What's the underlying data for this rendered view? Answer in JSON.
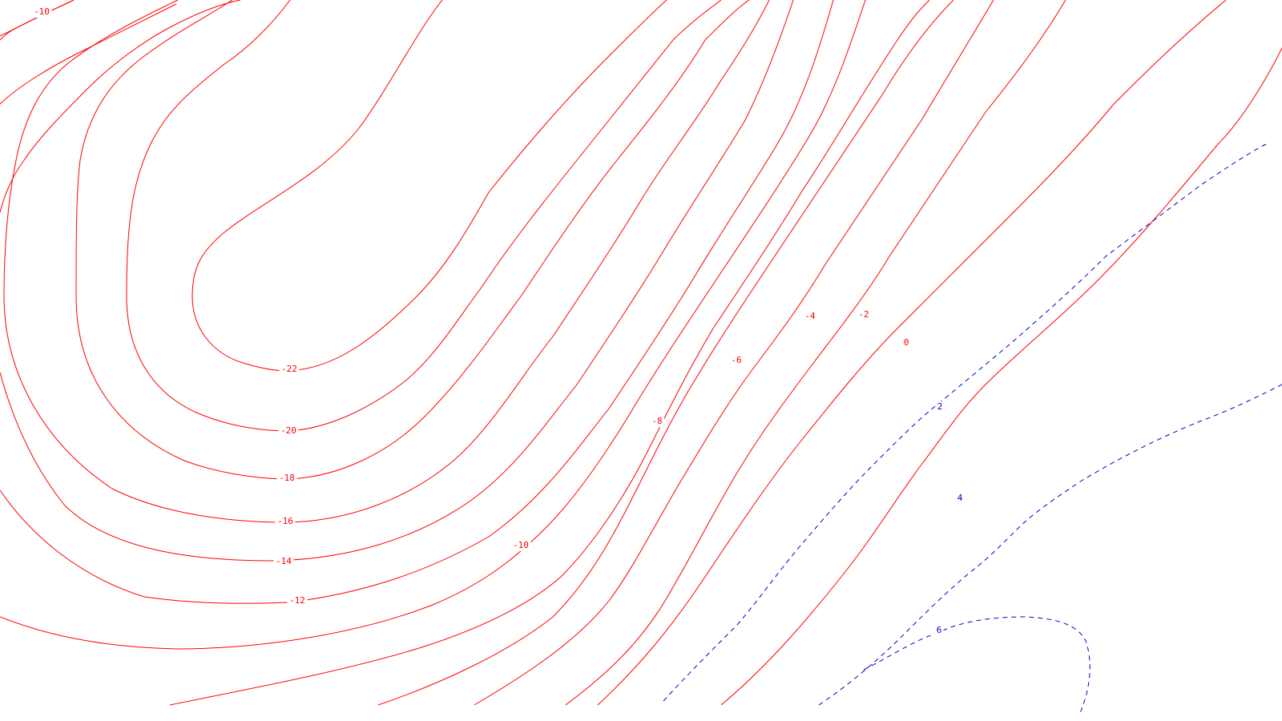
{
  "chart_data": {
    "type": "contour",
    "title": "",
    "xlabel": "",
    "ylabel": "",
    "grid": false,
    "legend": "none",
    "negative_style": {
      "color": "#ff0000",
      "dash": "solid"
    },
    "positive_style": {
      "color": "#0000cc",
      "dash": "dashed"
    },
    "contour_interval": 2,
    "levels": [
      -22,
      -20,
      -18,
      -16,
      -14,
      -12,
      -10,
      -8,
      -6,
      -4,
      -2,
      0,
      2,
      4,
      6
    ],
    "labels": [
      {
        "level": -10,
        "text": "-10"
      },
      {
        "level": -22,
        "text": "-22"
      },
      {
        "level": -20,
        "text": "-20"
      },
      {
        "level": -18,
        "text": "-18"
      },
      {
        "level": -16,
        "text": "-16"
      },
      {
        "level": -14,
        "text": "-14"
      },
      {
        "level": -12,
        "text": "-12"
      },
      {
        "level": -10,
        "text": "-10"
      },
      {
        "level": -8,
        "text": "-8"
      },
      {
        "level": -6,
        "text": "-6"
      },
      {
        "level": -4,
        "text": "-4"
      },
      {
        "level": -2,
        "text": "-2"
      },
      {
        "level": 0,
        "text": "0"
      },
      {
        "level": 2,
        "text": "2"
      },
      {
        "level": 4,
        "text": "4"
      },
      {
        "level": 6,
        "text": "6"
      }
    ]
  }
}
